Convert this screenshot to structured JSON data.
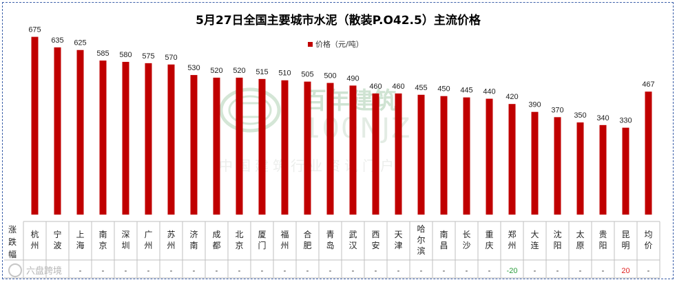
{
  "chart_data": {
    "type": "bar",
    "title": "5月27日全国主要城市水泥（散装P.O42.5）主流价格",
    "legend": [
      {
        "name": "价格（元/吨）",
        "color": "#c00000"
      }
    ],
    "series": [
      {
        "name": "价格（元/吨）",
        "color": "#c00000",
        "values": [
          675,
          635,
          625,
          585,
          580,
          575,
          570,
          530,
          520,
          520,
          515,
          510,
          505,
          500,
          490,
          460,
          460,
          455,
          450,
          445,
          440,
          420,
          390,
          370,
          350,
          340,
          330,
          467
        ]
      }
    ],
    "categories": [
      "杭州",
      "宁波",
      "上海",
      "南京",
      "深圳",
      "广州",
      "苏州",
      "济南",
      "成都",
      "北京",
      "厦门",
      "福州",
      "合肥",
      "青岛",
      "武汉",
      "西安",
      "天津",
      "哈尔滨",
      "南昌",
      "长沙",
      "重庆",
      "郑州",
      "大连",
      "沈阳",
      "太原",
      "贵阳",
      "昆明",
      "均价"
    ],
    "ylim": [
      0,
      700
    ],
    "grid": false,
    "legend_position": "top-center",
    "table": {
      "row_header": "涨跌幅",
      "changes": [
        "",
        "",
        "-",
        "-",
        "-",
        "-",
        "-",
        "-",
        "-",
        "-",
        "-",
        "-",
        "-",
        "-",
        "-",
        "-",
        "-",
        "-",
        "-",
        "-",
        "-",
        "-20",
        "-",
        "-",
        "-",
        "-",
        "20",
        "-"
      ]
    },
    "colors": {
      "bar": "#c00000",
      "increase": "#e02020",
      "decrease": "#2a9d3a"
    }
  },
  "watermark": {
    "brand_cn": "百年建筑",
    "brand_en": "100NJZ",
    "tagline": "中国建筑行业资讯门户",
    "corner_text": "六盘跨境"
  }
}
